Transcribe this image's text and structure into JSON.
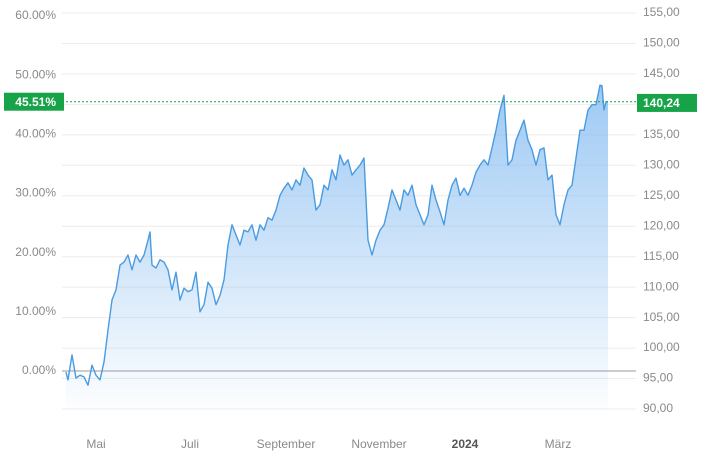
{
  "chart_data": {
    "type": "area",
    "xlim": [
      -4,
      570
    ],
    "xticks": [
      {
        "value": 30,
        "label": "Mai"
      },
      {
        "value": 124,
        "label": "Juli"
      },
      {
        "value": 220,
        "label": "September"
      },
      {
        "value": 313,
        "label": "November"
      },
      {
        "value": 399,
        "label": "2024",
        "bold": true
      },
      {
        "value": 492,
        "label": "März"
      }
    ],
    "ylim": [
      -6.42,
      60.5
    ],
    "yticks": [
      {
        "value": 0,
        "label": "0.00%"
      },
      {
        "value": 10,
        "label": "10.00%"
      },
      {
        "value": 20,
        "label": "20.00%"
      },
      {
        "value": 30,
        "label": "30.00%"
      },
      {
        "value": 40,
        "label": "40.00%"
      },
      {
        "value": 50,
        "label": "50.00%"
      },
      {
        "value": 60,
        "label": "60.00%"
      }
    ],
    "y2lim": [
      90,
      155
    ],
    "y2ticks": [
      {
        "value": 90,
        "label": "90,00"
      },
      {
        "value": 95,
        "label": "95,00"
      },
      {
        "value": 100,
        "label": "100,00"
      },
      {
        "value": 105,
        "label": "105,00"
      },
      {
        "value": 110,
        "label": "110,00"
      },
      {
        "value": 115,
        "label": "115,00"
      },
      {
        "value": 120,
        "label": "120,00"
      },
      {
        "value": 125,
        "label": "125,00"
      },
      {
        "value": 130,
        "label": "130,00"
      },
      {
        "value": 135,
        "label": "135,00"
      },
      {
        "value": 140,
        "label": "140,00"
      },
      {
        "value": 145,
        "label": "145,00"
      },
      {
        "value": 150,
        "label": "150,00"
      },
      {
        "value": 155,
        "label": "155,00"
      }
    ],
    "grid": true,
    "series": [
      {
        "color": "#4a9be0",
        "x": [
          0,
          2,
          6,
          10,
          14,
          18,
          22,
          26,
          30,
          34,
          38,
          42,
          46,
          50,
          54,
          58,
          62,
          66,
          70,
          74,
          78,
          82,
          84,
          86,
          90,
          94,
          98,
          102,
          106,
          110,
          114,
          118,
          122,
          126,
          130,
          134,
          138,
          142,
          146,
          150,
          154,
          158,
          162,
          166,
          170,
          174,
          178,
          182,
          186,
          190,
          194,
          198,
          202,
          206,
          210,
          214,
          218,
          222,
          226,
          230,
          234,
          238,
          242,
          246,
          250,
          254,
          258,
          262,
          266,
          270,
          274,
          278,
          282,
          286,
          290,
          294,
          298,
          302,
          306,
          310,
          314,
          318,
          322,
          326,
          330,
          334,
          338,
          342,
          346,
          350,
          354,
          358,
          362,
          366,
          370,
          374,
          378,
          382,
          386,
          390,
          394,
          398,
          402,
          406,
          410,
          414,
          418,
          422,
          426,
          430,
          434,
          438,
          442,
          446,
          450,
          454,
          458,
          462,
          466,
          470,
          474,
          478,
          482,
          486,
          490,
          494,
          498,
          502,
          506,
          510,
          514,
          518,
          522,
          526,
          530,
          534,
          536,
          538,
          540,
          542
        ],
        "values": [
          -0.2,
          -1.5,
          2.7,
          -1.2,
          -0.7,
          -1.0,
          -2.4,
          1.0,
          -0.7,
          -1.5,
          1.5,
          6.9,
          12.0,
          13.7,
          17.9,
          18.4,
          19.6,
          17.1,
          19.6,
          18.4,
          19.6,
          22.1,
          23.5,
          17.9,
          17.4,
          18.8,
          18.4,
          17.1,
          13.7,
          16.7,
          12.0,
          14.0,
          13.4,
          13.7,
          16.7,
          10.0,
          11.2,
          15.0,
          14.0,
          11.2,
          12.8,
          15.4,
          21.3,
          24.7,
          23.0,
          21.3,
          23.8,
          23.5,
          24.7,
          22.1,
          24.7,
          23.8,
          25.9,
          25.5,
          27.2,
          29.7,
          30.9,
          31.8,
          30.6,
          32.3,
          31.4,
          34.3,
          33.1,
          32.3,
          27.2,
          28.1,
          31.4,
          30.6,
          34.0,
          32.3,
          36.5,
          34.8,
          35.7,
          33.1,
          34.0,
          34.8,
          36.0,
          22.1,
          19.6,
          22.1,
          23.8,
          24.7,
          27.5,
          30.6,
          28.9,
          27.2,
          30.6,
          29.7,
          31.4,
          28.1,
          26.4,
          24.7,
          26.4,
          31.4,
          28.9,
          26.9,
          24.7,
          28.9,
          31.4,
          32.6,
          29.7,
          30.9,
          29.7,
          31.4,
          33.6,
          34.8,
          35.7,
          34.8,
          37.7,
          40.7,
          44.1,
          46.6,
          34.8,
          35.7,
          39.0,
          40.7,
          42.4,
          39.0,
          37.4,
          34.8,
          37.4,
          37.7,
          32.3,
          33.1,
          26.4,
          24.7,
          28.1,
          30.6,
          31.4,
          36.0,
          40.7,
          40.7,
          44.1,
          45.0,
          45.0,
          48.3,
          48.2,
          44.1,
          45.5,
          45.51
        ]
      }
    ],
    "last_percent": {
      "value": 45.51,
      "label": "45.51%"
    },
    "last_price": {
      "value": 140.24,
      "label": "140,24",
      "axis": "y2"
    },
    "marker_color": "#17a348"
  }
}
